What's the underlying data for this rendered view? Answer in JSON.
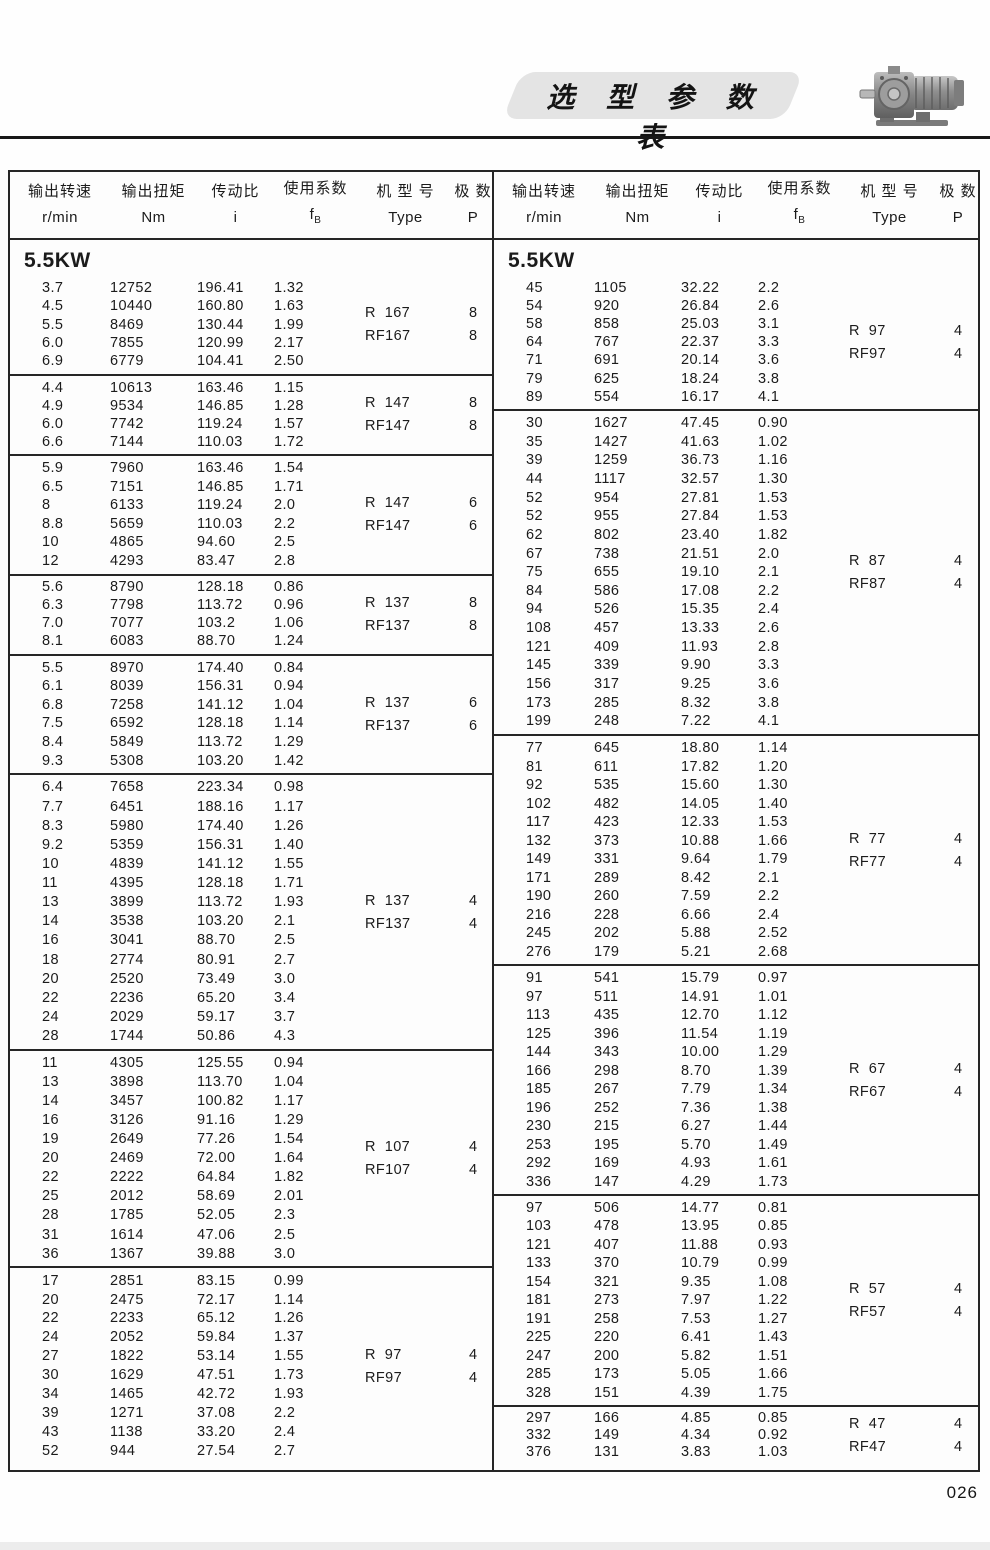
{
  "page": {
    "title_banner": "选 型 参 数 表",
    "page_number": "026"
  },
  "header": {
    "col1_cn": "输出转速",
    "col1_en": "r/min",
    "col2_cn": "输出扭矩",
    "col2_en": "Nm",
    "col3_cn": "传动比",
    "col3_en": "i",
    "col4_cn": "使用系数",
    "col4_en_main": "f",
    "col4_en_sub": "B",
    "col5_cn": "机 型 号",
    "col5_en": "Type",
    "col6_cn": "极  数",
    "col6_en": "P"
  },
  "table": {
    "left": {
      "power": "5.5KW",
      "sections": [
        {
          "types": [
            "R  167",
            "RF167"
          ],
          "poles": [
            "8",
            "8"
          ],
          "rows": [
            [
              "3.7",
              "12752",
              "196.41",
              "1.32"
            ],
            [
              "4.5",
              "10440",
              "160.80",
              "1.63"
            ],
            [
              "5.5",
              "8469",
              "130.44",
              "1.99"
            ],
            [
              "6.0",
              "7855",
              "120.99",
              "2.17"
            ],
            [
              "6.9",
              "6779",
              "104.41",
              "2.50"
            ]
          ]
        },
        {
          "types": [
            "R  147",
            "RF147"
          ],
          "poles": [
            "8",
            "8"
          ],
          "rows": [
            [
              "4.4",
              "10613",
              "163.46",
              "1.15"
            ],
            [
              "4.9",
              "9534",
              "146.85",
              "1.28"
            ],
            [
              "6.0",
              "7742",
              "119.24",
              "1.57"
            ],
            [
              "6.6",
              "7144",
              "110.03",
              "1.72"
            ]
          ]
        },
        {
          "types": [
            "R  147",
            "RF147"
          ],
          "poles": [
            "6",
            "6"
          ],
          "rows": [
            [
              "5.9",
              "7960",
              "163.46",
              "1.54"
            ],
            [
              "6.5",
              "7151",
              "146.85",
              "1.71"
            ],
            [
              "8",
              "6133",
              "119.24",
              "2.0"
            ],
            [
              "8.8",
              "5659",
              "110.03",
              "2.2"
            ],
            [
              "10",
              "4865",
              "94.60",
              "2.5"
            ],
            [
              "12",
              "4293",
              "83.47",
              "2.8"
            ]
          ]
        },
        {
          "types": [
            "R  137",
            "RF137"
          ],
          "poles": [
            "8",
            "8"
          ],
          "rows": [
            [
              "5.6",
              "8790",
              "128.18",
              "0.86"
            ],
            [
              "6.3",
              "7798",
              "113.72",
              "0.96"
            ],
            [
              "7.0",
              "7077",
              "103.2",
              "1.06"
            ],
            [
              "8.1",
              "6083",
              "88.70",
              "1.24"
            ]
          ]
        },
        {
          "types": [
            "R  137",
            "RF137"
          ],
          "poles": [
            "6",
            "6"
          ],
          "rows": [
            [
              "5.5",
              "8970",
              "174.40",
              "0.84"
            ],
            [
              "6.1",
              "8039",
              "156.31",
              "0.94"
            ],
            [
              "6.8",
              "7258",
              "141.12",
              "1.04"
            ],
            [
              "7.5",
              "6592",
              "128.18",
              "1.14"
            ],
            [
              "8.4",
              "5849",
              "113.72",
              "1.29"
            ],
            [
              "9.3",
              "5308",
              "103.20",
              "1.42"
            ]
          ]
        },
        {
          "types": [
            "R  137",
            "RF137"
          ],
          "poles": [
            "4",
            "4"
          ],
          "rows": [
            [
              "6.4",
              "7658",
              "223.34",
              "0.98"
            ],
            [
              "7.7",
              "6451",
              "188.16",
              "1.17"
            ],
            [
              "8.3",
              "5980",
              "174.40",
              "1.26"
            ],
            [
              "9.2",
              "5359",
              "156.31",
              "1.40"
            ],
            [
              "10",
              "4839",
              "141.12",
              "1.55"
            ],
            [
              "11",
              "4395",
              "128.18",
              "1.71"
            ],
            [
              "13",
              "3899",
              "113.72",
              "1.93"
            ],
            [
              "14",
              "3538",
              "103.20",
              "2.1"
            ],
            [
              "16",
              "3041",
              "88.70",
              "2.5"
            ],
            [
              "18",
              "2774",
              "80.91",
              "2.7"
            ],
            [
              "20",
              "2520",
              "73.49",
              "3.0"
            ],
            [
              "22",
              "2236",
              "65.20",
              "3.4"
            ],
            [
              "24",
              "2029",
              "59.17",
              "3.7"
            ],
            [
              "28",
              "1744",
              "50.86",
              "4.3"
            ]
          ]
        },
        {
          "types": [
            "R  107",
            "RF107"
          ],
          "poles": [
            "4",
            "4"
          ],
          "rows": [
            [
              "11",
              "4305",
              "125.55",
              "0.94"
            ],
            [
              "13",
              "3898",
              "113.70",
              "1.04"
            ],
            [
              "14",
              "3457",
              "100.82",
              "1.17"
            ],
            [
              "16",
              "3126",
              "91.16",
              "1.29"
            ],
            [
              "19",
              "2649",
              "77.26",
              "1.54"
            ],
            [
              "20",
              "2469",
              "72.00",
              "1.64"
            ],
            [
              "22",
              "2222",
              "64.84",
              "1.82"
            ],
            [
              "25",
              "2012",
              "58.69",
              "2.01"
            ],
            [
              "28",
              "1785",
              "52.05",
              "2.3"
            ],
            [
              "31",
              "1614",
              "47.06",
              "2.5"
            ],
            [
              "36",
              "1367",
              "39.88",
              "3.0"
            ]
          ]
        },
        {
          "types": [
            "R  97",
            "RF97"
          ],
          "poles": [
            "4",
            "4"
          ],
          "rows": [
            [
              "17",
              "2851",
              "83.15",
              "0.99"
            ],
            [
              "20",
              "2475",
              "72.17",
              "1.14"
            ],
            [
              "22",
              "2233",
              "65.12",
              "1.26"
            ],
            [
              "24",
              "2052",
              "59.84",
              "1.37"
            ],
            [
              "27",
              "1822",
              "53.14",
              "1.55"
            ],
            [
              "30",
              "1629",
              "47.51",
              "1.73"
            ],
            [
              "34",
              "1465",
              "42.72",
              "1.93"
            ],
            [
              "39",
              "1271",
              "37.08",
              "2.2"
            ],
            [
              "43",
              "1138",
              "33.20",
              "2.4"
            ],
            [
              "52",
              "944",
              "27.54",
              "2.7"
            ]
          ]
        }
      ]
    },
    "right": {
      "power": "5.5KW",
      "sections": [
        {
          "types": [
            "R  97",
            "RF97"
          ],
          "poles": [
            "4",
            "4"
          ],
          "rows": [
            [
              "45",
              "1105",
              "32.22",
              "2.2"
            ],
            [
              "54",
              "920",
              "26.84",
              "2.6"
            ],
            [
              "58",
              "858",
              "25.03",
              "3.1"
            ],
            [
              "64",
              "767",
              "22.37",
              "3.3"
            ],
            [
              "71",
              "691",
              "20.14",
              "3.6"
            ],
            [
              "79",
              "625",
              "18.24",
              "3.8"
            ],
            [
              "89",
              "554",
              "16.17",
              "4.1"
            ]
          ]
        },
        {
          "types": [
            "R  87",
            "RF87"
          ],
          "poles": [
            "4",
            "4"
          ],
          "rows": [
            [
              "30",
              "1627",
              "47.45",
              "0.90"
            ],
            [
              "35",
              "1427",
              "41.63",
              "1.02"
            ],
            [
              "39",
              "1259",
              "36.73",
              "1.16"
            ],
            [
              "44",
              "1117",
              "32.57",
              "1.30"
            ],
            [
              "52",
              "954",
              "27.81",
              "1.53"
            ],
            [
              "52",
              "955",
              "27.84",
              "1.53"
            ],
            [
              "62",
              "802",
              "23.40",
              "1.82"
            ],
            [
              "67",
              "738",
              "21.51",
              "2.0"
            ],
            [
              "75",
              "655",
              "19.10",
              "2.1"
            ],
            [
              "84",
              "586",
              "17.08",
              "2.2"
            ],
            [
              "94",
              "526",
              "15.35",
              "2.4"
            ],
            [
              "108",
              "457",
              "13.33",
              "2.6"
            ],
            [
              "121",
              "409",
              "11.93",
              "2.8"
            ],
            [
              "145",
              "339",
              "9.90",
              "3.3"
            ],
            [
              "156",
              "317",
              "9.25",
              "3.6"
            ],
            [
              "173",
              "285",
              "8.32",
              "3.8"
            ],
            [
              "199",
              "248",
              "7.22",
              "4.1"
            ]
          ]
        },
        {
          "types": [
            "R  77",
            "RF77"
          ],
          "poles": [
            "4",
            "4"
          ],
          "rows": [
            [
              "77",
              "645",
              "18.80",
              "1.14"
            ],
            [
              "81",
              "611",
              "17.82",
              "1.20"
            ],
            [
              "92",
              "535",
              "15.60",
              "1.30"
            ],
            [
              "102",
              "482",
              "14.05",
              "1.40"
            ],
            [
              "117",
              "423",
              "12.33",
              "1.53"
            ],
            [
              "132",
              "373",
              "10.88",
              "1.66"
            ],
            [
              "149",
              "331",
              "9.64",
              "1.79"
            ],
            [
              "171",
              "289",
              "8.42",
              "2.1"
            ],
            [
              "190",
              "260",
              "7.59",
              "2.2"
            ],
            [
              "216",
              "228",
              "6.66",
              "2.4"
            ],
            [
              "245",
              "202",
              "5.88",
              "2.52"
            ],
            [
              "276",
              "179",
              "5.21",
              "2.68"
            ]
          ]
        },
        {
          "types": [
            "R  67",
            "RF67"
          ],
          "poles": [
            "4",
            "4"
          ],
          "rows": [
            [
              "91",
              "541",
              "15.79",
              "0.97"
            ],
            [
              "97",
              "511",
              "14.91",
              "1.01"
            ],
            [
              "113",
              "435",
              "12.70",
              "1.12"
            ],
            [
              "125",
              "396",
              "11.54",
              "1.19"
            ],
            [
              "144",
              "343",
              "10.00",
              "1.29"
            ],
            [
              "166",
              "298",
              "8.70",
              "1.39"
            ],
            [
              "185",
              "267",
              "7.79",
              "1.34"
            ],
            [
              "196",
              "252",
              "7.36",
              "1.38"
            ],
            [
              "230",
              "215",
              "6.27",
              "1.44"
            ],
            [
              "253",
              "195",
              "5.70",
              "1.49"
            ],
            [
              "292",
              "169",
              "4.93",
              "1.61"
            ],
            [
              "336",
              "147",
              "4.29",
              "1.73"
            ]
          ]
        },
        {
          "types": [
            "R  57",
            "RF57"
          ],
          "poles": [
            "4",
            "4"
          ],
          "rows": [
            [
              "97",
              "506",
              "14.77",
              "0.81"
            ],
            [
              "103",
              "478",
              "13.95",
              "0.85"
            ],
            [
              "121",
              "407",
              "11.88",
              "0.93"
            ],
            [
              "133",
              "370",
              "10.79",
              "0.99"
            ],
            [
              "154",
              "321",
              "9.35",
              "1.08"
            ],
            [
              "181",
              "273",
              "7.97",
              "1.22"
            ],
            [
              "191",
              "258",
              "7.53",
              "1.27"
            ],
            [
              "225",
              "220",
              "6.41",
              "1.43"
            ],
            [
              "247",
              "200",
              "5.82",
              "1.51"
            ],
            [
              "285",
              "173",
              "5.05",
              "1.66"
            ],
            [
              "328",
              "151",
              "4.39",
              "1.75"
            ]
          ]
        },
        {
          "types": [
            "R  47",
            "RF47"
          ],
          "poles": [
            "4",
            "4"
          ],
          "rows": [
            [
              "297",
              "166",
              "4.85",
              "0.85"
            ],
            [
              "332",
              "149",
              "4.34",
              "0.92"
            ],
            [
              "376",
              "131",
              "3.83",
              "1.03"
            ]
          ]
        }
      ]
    }
  }
}
